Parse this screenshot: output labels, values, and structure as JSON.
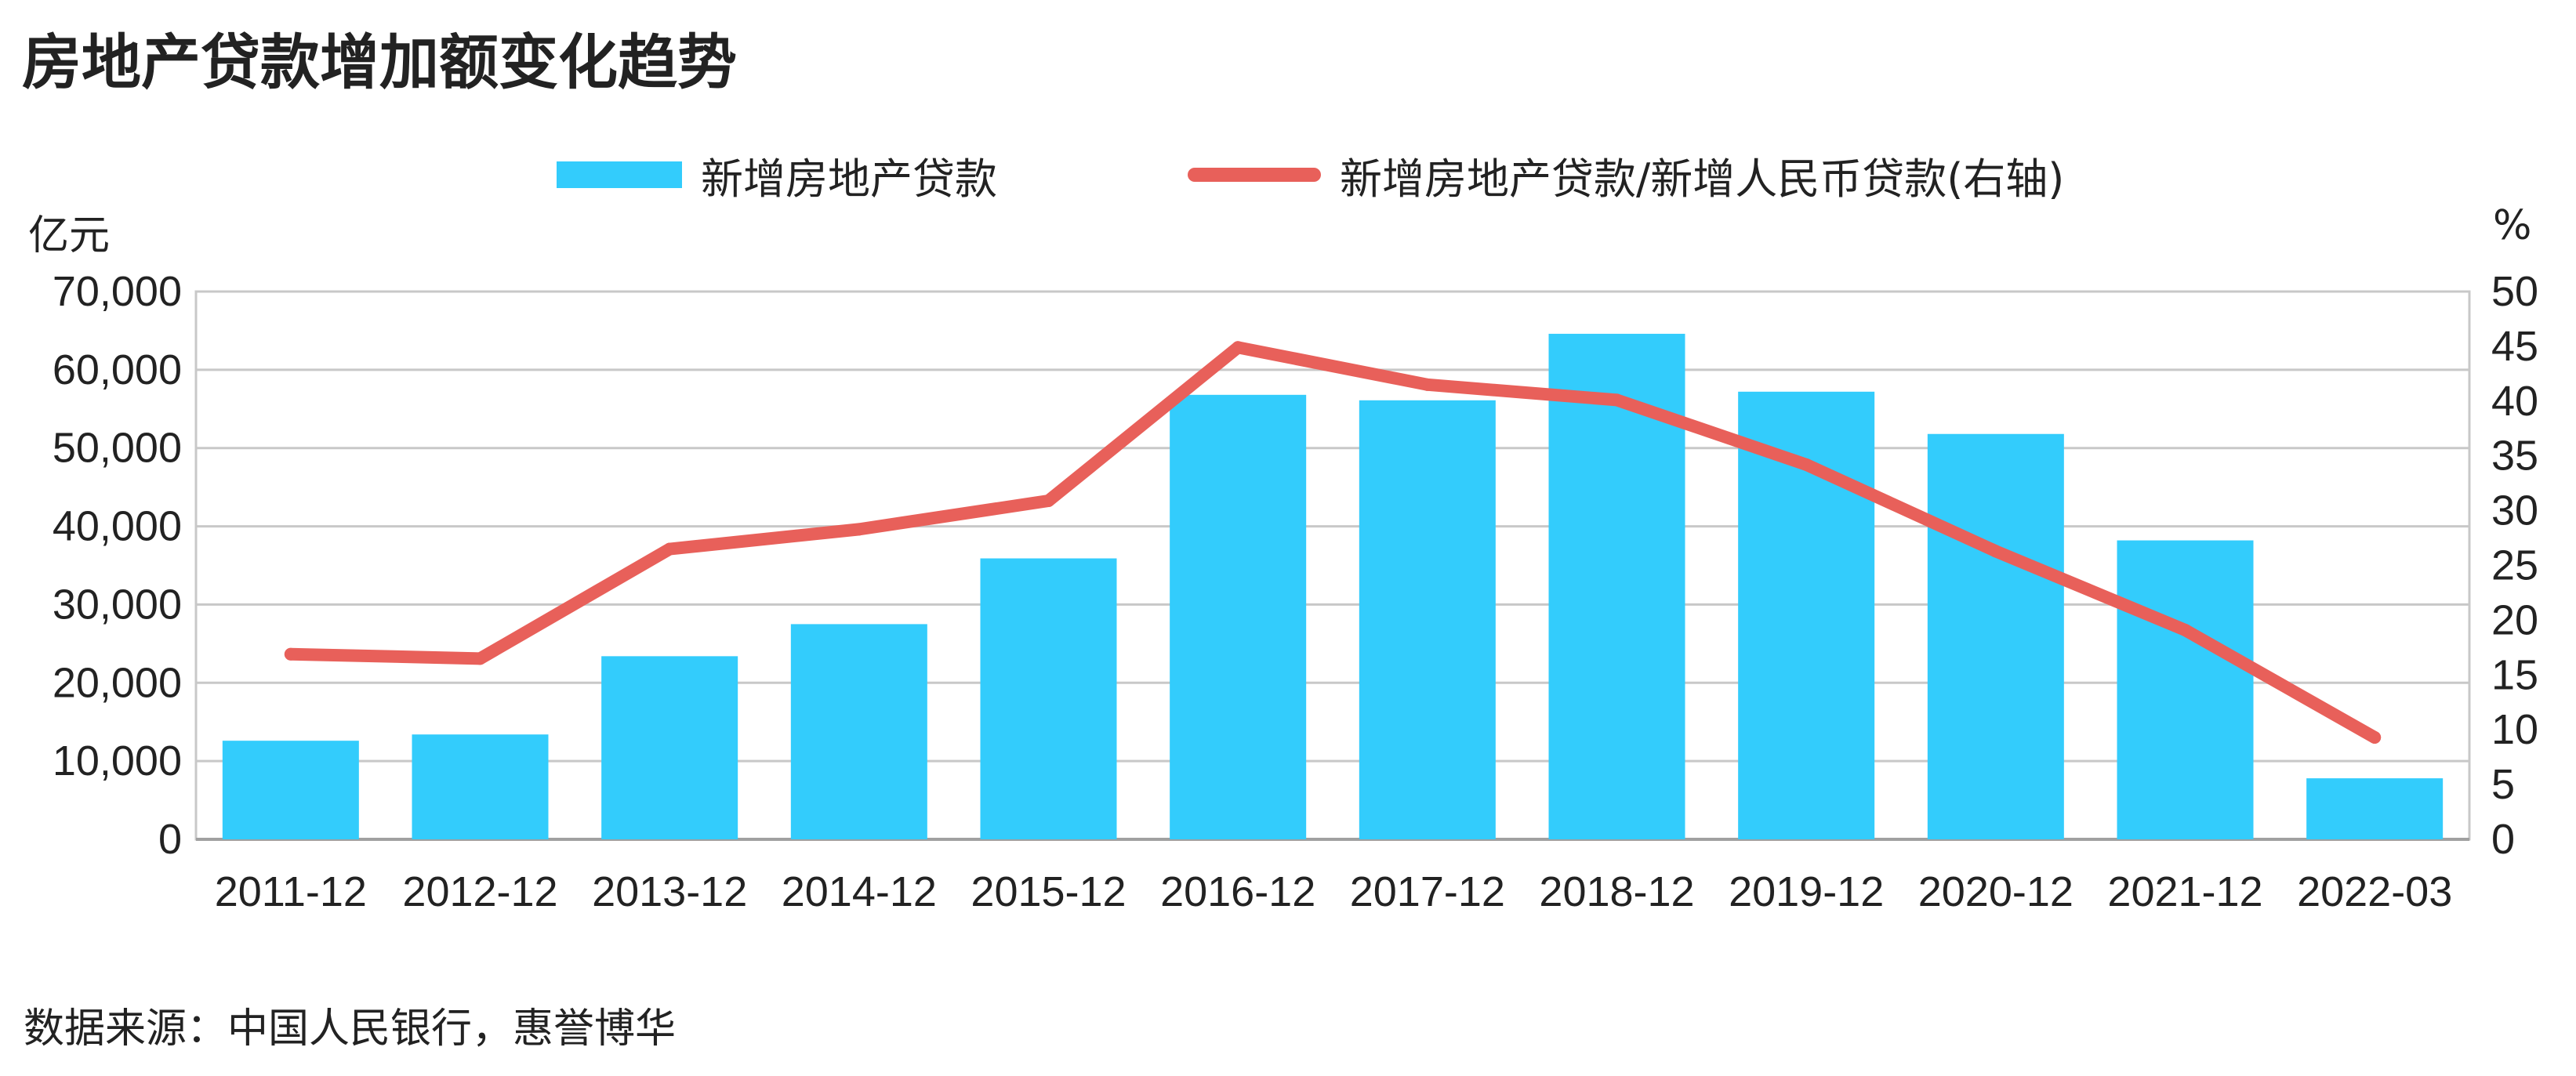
{
  "title": "房地产贷款增加额变化趋势",
  "source": "数据来源：中国人民银行，惠誉博华",
  "left_unit": "亿元",
  "right_unit": "%",
  "colors": {
    "bar": "#33ccfc",
    "line": "#e8605a",
    "grid": "#c8c8c8",
    "axis": "#a0a0a0"
  },
  "chart_data": {
    "type": "bar",
    "categories": [
      "2011-12",
      "2012-12",
      "2013-12",
      "2014-12",
      "2015-12",
      "2016-12",
      "2017-12",
      "2018-12",
      "2019-12",
      "2020-12",
      "2021-12",
      "2022-03"
    ],
    "series": [
      {
        "name": "新增房地产贷款",
        "type": "bar",
        "axis": "left",
        "values": [
          12600,
          13400,
          23400,
          27500,
          35900,
          56800,
          56100,
          64600,
          57200,
          51800,
          38200,
          7800
        ]
      },
      {
        "name": "新增房地产贷款/新增人民币贷款(右轴)",
        "type": "line",
        "axis": "right",
        "values": [
          16.9,
          16.5,
          26.5,
          28.3,
          30.9,
          44.9,
          41.5,
          40.1,
          34.2,
          26.3,
          19.1,
          9.3
        ]
      }
    ],
    "y_left": {
      "ylim": [
        0,
        70000
      ],
      "ticks": [
        "0",
        "10,000",
        "20,000",
        "30,000",
        "40,000",
        "50,000",
        "60,000",
        "70,000"
      ],
      "tick_values": [
        0,
        10000,
        20000,
        30000,
        40000,
        50000,
        60000,
        70000
      ]
    },
    "y_right": {
      "ylim": [
        0,
        50
      ],
      "ticks": [
        "0",
        "5",
        "10",
        "15",
        "20",
        "25",
        "30",
        "35",
        "40",
        "45",
        "50"
      ],
      "tick_values": [
        0,
        5,
        10,
        15,
        20,
        25,
        30,
        35,
        40,
        45,
        50
      ]
    },
    "grid": true,
    "legend": "top-center"
  }
}
